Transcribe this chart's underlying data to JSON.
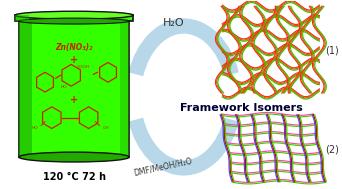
{
  "bg_color": "#ffffff",
  "fig_width": 3.42,
  "fig_height": 1.89,
  "dpi": 100,
  "jar_green": "#33ff00",
  "jar_dark": "#22aa00",
  "jar_outline": "#111111",
  "text_120": "120 °C 72 h",
  "text_zn": "Zn(NO₃)₂",
  "text_h2o": "H₂O",
  "text_dmf": "DMF/MeOH/H₂O",
  "text_framework": "Framework Isomers",
  "text_1": "(1)",
  "text_2": "(2)",
  "arrow_color": "#b8d8ea",
  "grid1_colors": [
    "#ff2222",
    "#cc6600",
    "#44bb00"
  ],
  "grid2_colors": [
    "#ff44aa",
    "#44cc00",
    "#4444ff",
    "#cc0000"
  ]
}
